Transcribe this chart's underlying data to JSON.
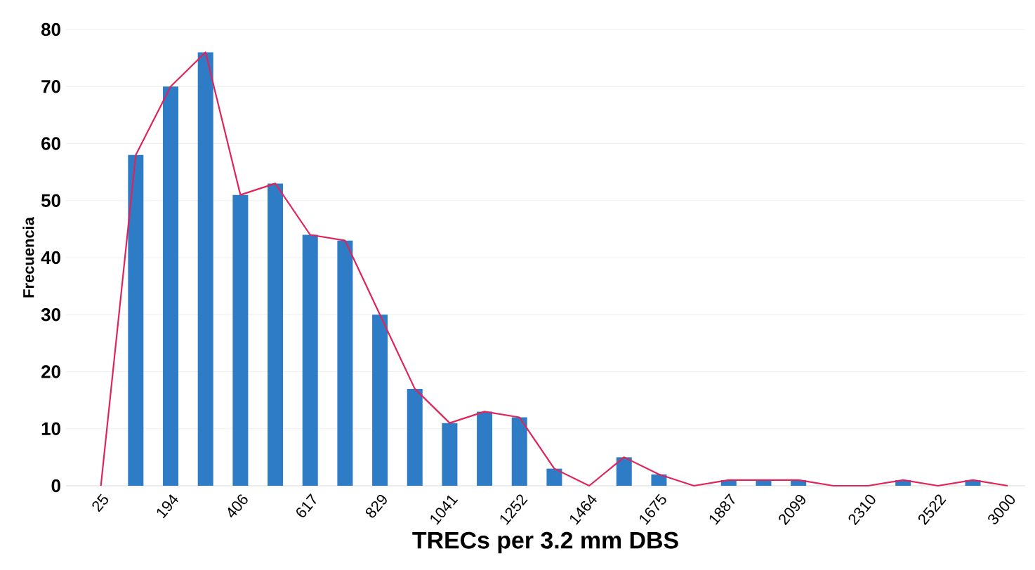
{
  "chart_data": {
    "type": "bar",
    "xlabel": "TRECs  per 3.2 mm DBS",
    "ylabel": "Frecuencia",
    "categories": [
      "25",
      null,
      "194",
      null,
      "406",
      null,
      "617",
      null,
      "829",
      null,
      "1041",
      null,
      "1252",
      null,
      "1464",
      null,
      "1675",
      null,
      "1887",
      null,
      "2099",
      null,
      "2310",
      null,
      "2522",
      null,
      "3000"
    ],
    "series": [
      {
        "color": "#2e7cc6",
        "values": [
          0,
          58,
          70,
          76,
          51,
          53,
          44,
          43,
          30,
          17,
          11,
          13,
          12,
          3,
          0,
          5,
          2,
          0,
          1,
          1,
          1,
          0,
          0,
          1,
          0,
          1,
          0
        ]
      },
      {
        "type": "line",
        "color": "#e0245a",
        "values": [
          0,
          58,
          70,
          76,
          51,
          53,
          44,
          43,
          30,
          17,
          11,
          13,
          12,
          3,
          0,
          5,
          2,
          0,
          1,
          1,
          1,
          0,
          0,
          1,
          0,
          1,
          0
        ]
      }
    ],
    "ylim": [
      0,
      80
    ],
    "yticks": [
      0,
      10,
      20,
      30,
      40,
      50,
      60,
      70,
      80
    ],
    "grid": "y"
  }
}
